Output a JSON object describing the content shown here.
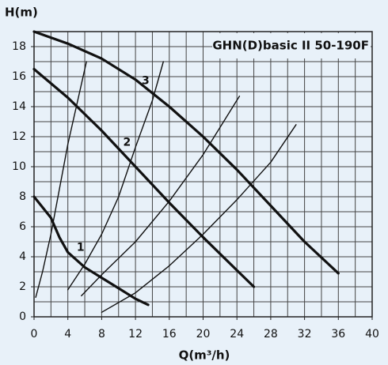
{
  "chart_data": {
    "type": "line",
    "title": "GHN(D)basic II 50-190F",
    "x_label": "Q(m³/h)",
    "y_label": "H(m)",
    "xlim": [
      0,
      40
    ],
    "ylim": [
      0,
      19
    ],
    "xticks": [
      0,
      4,
      8,
      12,
      16,
      20,
      24,
      28,
      32,
      36,
      40
    ],
    "yticks": [
      0,
      2,
      4,
      6,
      8,
      10,
      12,
      14,
      16,
      18
    ],
    "xgrid": [
      0,
      2,
      4,
      6,
      8,
      10,
      12,
      14,
      16,
      18,
      20,
      22,
      24,
      26,
      28,
      30,
      32,
      34,
      36,
      38,
      40
    ],
    "ygrid": [
      0,
      1,
      2,
      3,
      4,
      5,
      6,
      7,
      8,
      9,
      10,
      11,
      12,
      13,
      14,
      15,
      16,
      17,
      18,
      19
    ],
    "grid": true,
    "annotations": [
      "1",
      "2",
      "3"
    ],
    "series": [
      {
        "name": "1",
        "color": "#111111",
        "width": "thick",
        "x": [
          0,
          2,
          3,
          4,
          6,
          8,
          10,
          12,
          13.5
        ],
        "values": [
          8,
          6.6,
          5.3,
          4.3,
          3.3,
          2.6,
          1.9,
          1.2,
          0.8
        ]
      },
      {
        "name": "2",
        "color": "#111111",
        "width": "thick",
        "x": [
          0,
          4,
          8,
          12,
          16,
          20,
          24,
          26
        ],
        "values": [
          16.5,
          14.6,
          12.4,
          10,
          7.6,
          5.3,
          3.1,
          2
        ]
      },
      {
        "name": "3",
        "color": "#111111",
        "width": "thick",
        "x": [
          0,
          4,
          8,
          12,
          16,
          20,
          24,
          28,
          32,
          36
        ],
        "values": [
          19,
          18.2,
          17.2,
          15.8,
          14,
          12,
          9.8,
          7.4,
          5,
          2.9
        ]
      },
      {
        "color": "#111111",
        "width": "thin",
        "x": [
          0.2,
          1,
          2,
          3,
          4,
          5,
          6.2
        ],
        "values": [
          1.3,
          3,
          5.5,
          8.5,
          11.5,
          14,
          17
        ]
      },
      {
        "color": "#111111",
        "width": "thin",
        "x": [
          4,
          6,
          8,
          10,
          12,
          14,
          15.3
        ],
        "values": [
          1.8,
          3.5,
          5.5,
          8,
          11.3,
          14.4,
          17
        ]
      },
      {
        "color": "#111111",
        "width": "thin",
        "x": [
          5.6,
          8,
          12,
          16,
          20,
          24.3
        ],
        "values": [
          1.4,
          2.8,
          5,
          7.7,
          10.8,
          14.7
        ]
      },
      {
        "color": "#111111",
        "width": "thin",
        "x": [
          8,
          12,
          16,
          20,
          24,
          28,
          31
        ],
        "values": [
          0.3,
          1.6,
          3.4,
          5.5,
          7.8,
          10.3,
          12.8
        ]
      }
    ]
  }
}
